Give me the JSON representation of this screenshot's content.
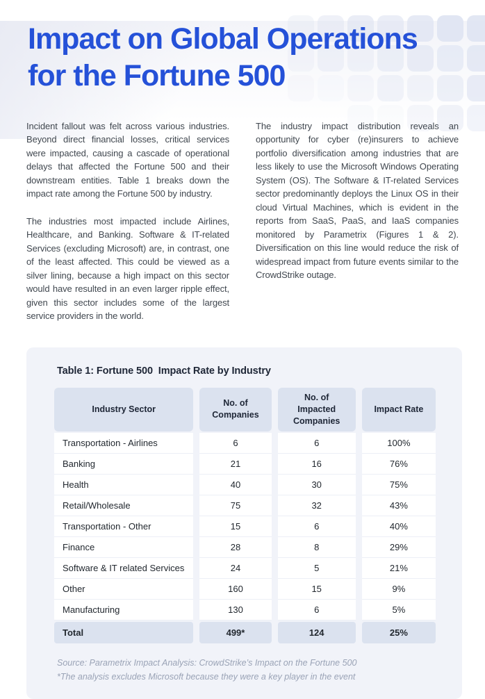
{
  "header": {
    "title": "Impact on Global Operations for the Fortune 500"
  },
  "intro": {
    "left": [
      "Incident fallout was felt across various industries. Beyond direct financial losses, critical services were impacted, causing a cascade of operational delays that affected the Fortune 500 and their downstream entities. Table 1 breaks down the impact rate among the Fortune 500 by industry.",
      "The industries most impacted include Airlines, Healthcare, and Banking. Software & IT-related Services (excluding Microsoft) are, in contrast, one of the least affected. This could be viewed as a silver lining, because a high impact on this sector would have resulted in an even larger ripple effect, given this sector includes some of the largest service providers in the world."
    ],
    "right": [
      "The industry impact distribution reveals an opportunity for cyber (re)insurers to achieve portfolio diversification among industries that are less likely to use the Microsoft Windows Operating System (OS). The Software & IT-related Services sector predominantly deploys the Linux OS in their cloud Virtual Machines, which is evident in the reports from SaaS, PaaS, and IaaS companies monitored by Parametrix (Figures 1 & 2). Diversification on this line would reduce the risk of widespread impact from future events similar to the CrowdStrike outage."
    ]
  },
  "table": {
    "title": "Table 1: Fortune 500  Impact Rate by Industry",
    "columns": [
      "Industry Sector",
      "No. of Companies",
      "No. of Impacted Companies",
      "Impact Rate"
    ],
    "rows": [
      {
        "sector": "Transportation - Airlines",
        "companies": "6",
        "impacted": "6",
        "rate": "100%"
      },
      {
        "sector": "Banking",
        "companies": "21",
        "impacted": "16",
        "rate": "76%"
      },
      {
        "sector": "Health",
        "companies": "40",
        "impacted": "30",
        "rate": "75%"
      },
      {
        "sector": "Retail/Wholesale",
        "companies": "75",
        "impacted": "32",
        "rate": "43%"
      },
      {
        "sector": "Transportation - Other",
        "companies": "15",
        "impacted": "6",
        "rate": "40%"
      },
      {
        "sector": "Finance",
        "companies": "28",
        "impacted": "8",
        "rate": "29%"
      },
      {
        "sector": "Software & IT related Services",
        "companies": "24",
        "impacted": "5",
        "rate": "21%"
      },
      {
        "sector": "Other",
        "companies": "160",
        "impacted": "15",
        "rate": "9%"
      },
      {
        "sector": "Manufacturing",
        "companies": "130",
        "impacted": "6",
        "rate": "5%"
      }
    ],
    "total": {
      "sector": "Total",
      "companies": "499*",
      "impacted": "124",
      "rate": "25%"
    },
    "source_lines": [
      "Source: Parametrix Impact Analysis: CrowdStrike’s Impact on the Fortune 500",
      "*The analysis excludes Microsoft because they were a key player in the event"
    ]
  },
  "colors": {
    "accent_blue": "#2551d8",
    "panel_bg": "#f1f3f9",
    "header_cell_bg": "#dbe2ef",
    "body_text": "#40474f",
    "source_text": "#9aa3b6",
    "tile": "#dfe4f2"
  }
}
